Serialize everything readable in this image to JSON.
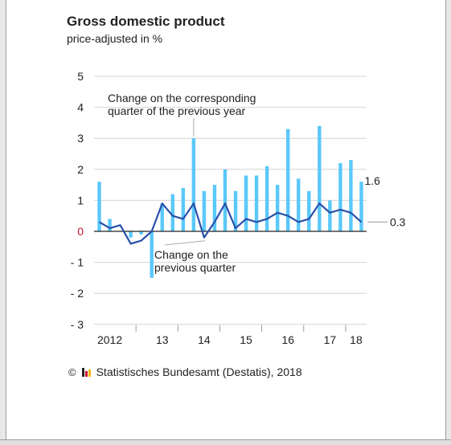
{
  "title": "Gross domestic product",
  "subtitle": "price-adjusted in %",
  "source": {
    "copyright_symbol": "©",
    "text": "Statistisches Bundesamt (Destatis), 2018",
    "logo_colors": [
      "#222222",
      "#c8102e",
      "#f2b700"
    ]
  },
  "colors": {
    "bars": "#5ac8fa",
    "line": "#2a4fa8",
    "zero_label": "#c8102e",
    "grid": "#d4d4d4"
  },
  "chart_data": {
    "type": "bar",
    "ylim": [
      -3,
      5
    ],
    "yticks": [
      {
        "value": 5,
        "label": "5"
      },
      {
        "value": 4,
        "label": "4"
      },
      {
        "value": 3,
        "label": "3"
      },
      {
        "value": 2,
        "label": "2"
      },
      {
        "value": 1,
        "label": "1"
      },
      {
        "value": 0,
        "label": "0"
      },
      {
        "value": -1,
        "label": "- 1"
      },
      {
        "value": -2,
        "label": "- 2"
      },
      {
        "value": -3,
        "label": "- 3"
      }
    ],
    "grid": true,
    "x_labels": [
      {
        "q": 1.5,
        "label": "2012"
      },
      {
        "q": 6.5,
        "label": "13"
      },
      {
        "q": 10.5,
        "label": "14"
      },
      {
        "q": 14.5,
        "label": "15"
      },
      {
        "q": 18.5,
        "label": "16"
      },
      {
        "q": 22.5,
        "label": "17"
      },
      {
        "q": 25,
        "label": "18"
      }
    ],
    "year_separators": [
      3.5,
      7.5,
      11.5,
      15.5,
      19.5,
      23.5
    ],
    "series": [
      {
        "values": [
          1.6,
          0.4,
          0.0,
          -0.2,
          -0.1,
          -1.5,
          0.9,
          1.2,
          1.4,
          3.0,
          1.3,
          1.5,
          2.0,
          1.3,
          1.8,
          1.8,
          2.1,
          1.5,
          3.3,
          1.7,
          1.3,
          3.4,
          1.0,
          2.2,
          2.3,
          1.6
        ]
      },
      {
        "values": [
          0.3,
          0.1,
          0.2,
          -0.4,
          -0.3,
          0.0,
          0.9,
          0.5,
          0.4,
          0.9,
          -0.2,
          0.3,
          0.9,
          0.1,
          0.4,
          0.3,
          0.4,
          0.6,
          0.5,
          0.3,
          0.4,
          0.9,
          0.6,
          0.7,
          0.6,
          0.3
        ]
      }
    ],
    "annotations": [
      {
        "text_lines": [
          "Change on the corresponding",
          "quarter of the previous year"
        ],
        "points_to_quarter": 9
      },
      {
        "text_lines": [
          "Change on the",
          "previous quarter"
        ],
        "points_to_quarter": 10
      }
    ],
    "end_labels": {
      "bar_last": "1.6",
      "line_last": "0.3"
    }
  }
}
